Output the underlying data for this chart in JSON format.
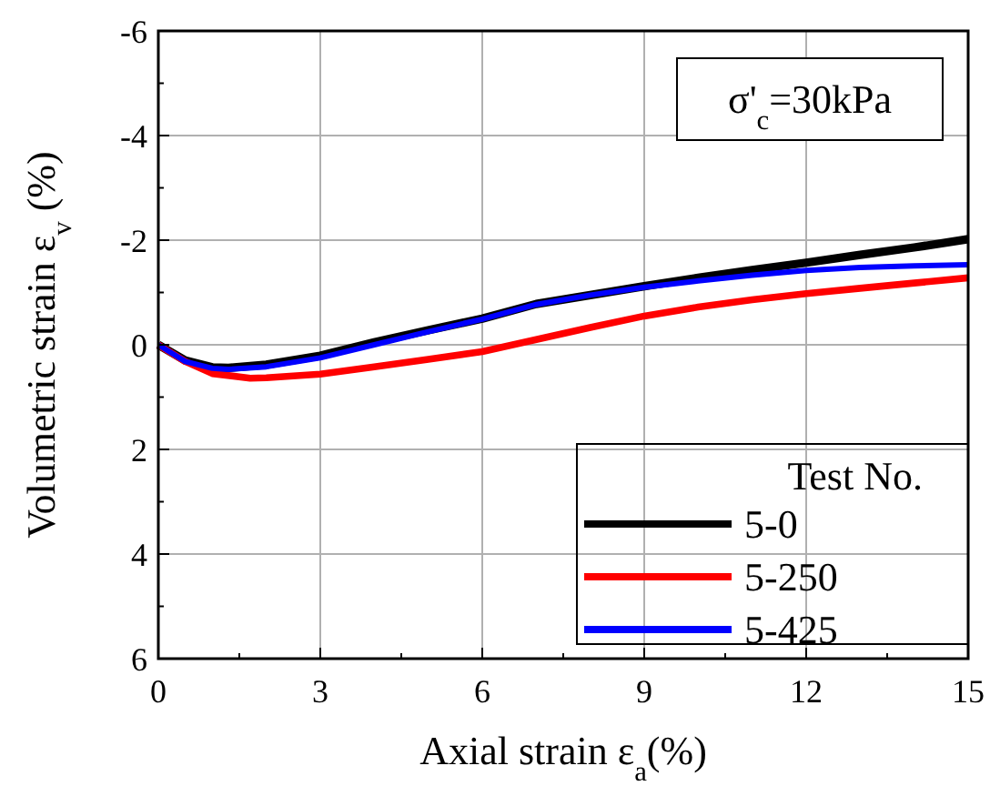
{
  "chart_data": {
    "type": "line",
    "xlabel": "Axial strain ε$_{a}$(%)",
    "ylabel": "Volumetric strain ε$_{v}$ (%)",
    "legend_title": "Test No.",
    "annotations": [
      "σ'$_{c}$=30kPa"
    ],
    "xlim": [
      0,
      15
    ],
    "xticks": [
      0,
      3,
      6,
      9,
      12,
      15
    ],
    "ylim": [
      6,
      -6
    ],
    "yticks": [
      6,
      4,
      2,
      0,
      -2,
      -4,
      -6
    ],
    "grid": true,
    "legend": "bottom right",
    "line_style": "solid",
    "series": [
      {
        "name": "5-0",
        "color": "#000000",
        "x": [
          0,
          0.5,
          1,
          1.3,
          2,
          3,
          4,
          5,
          6,
          7,
          8,
          9,
          10,
          11,
          12,
          13,
          14,
          15
        ],
        "values": [
          0,
          0.3,
          0.43,
          0.44,
          0.38,
          0.21,
          -0.05,
          -0.28,
          -0.5,
          -0.78,
          -0.95,
          -1.12,
          -1.28,
          -1.43,
          -1.57,
          -1.72,
          -1.86,
          -2.02
        ]
      },
      {
        "name": "5-250",
        "color": "#ff0000",
        "x": [
          0,
          0.5,
          1,
          1.7,
          2,
          3,
          4,
          5,
          6,
          7,
          8,
          9,
          10,
          11,
          12,
          13,
          14,
          15
        ],
        "values": [
          0,
          0.32,
          0.55,
          0.64,
          0.63,
          0.56,
          0.42,
          0.28,
          0.13,
          -0.1,
          -0.33,
          -0.55,
          -0.72,
          -0.86,
          -0.98,
          -1.08,
          -1.18,
          -1.28
        ]
      },
      {
        "name": "5-425",
        "color": "#0000ff",
        "x": [
          0,
          0.5,
          1,
          1.3,
          2,
          3,
          4,
          5,
          6,
          7,
          8,
          9,
          10,
          11,
          12,
          13,
          14,
          15
        ],
        "values": [
          0,
          0.32,
          0.45,
          0.47,
          0.42,
          0.25,
          0,
          -0.25,
          -0.49,
          -0.77,
          -0.95,
          -1.1,
          -1.22,
          -1.33,
          -1.42,
          -1.48,
          -1.51,
          -1.53
        ]
      }
    ]
  }
}
